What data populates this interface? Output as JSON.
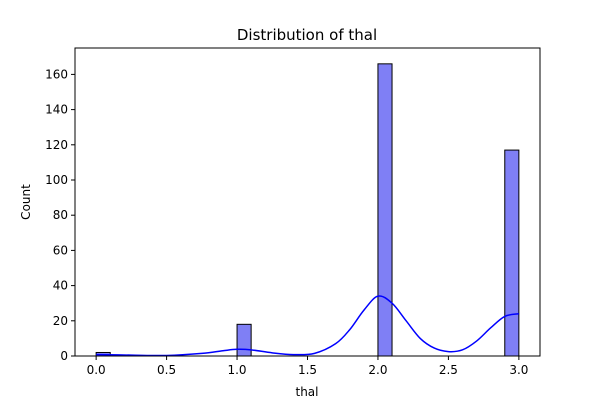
{
  "chart_data": {
    "type": "bar",
    "title": "Distribution of thal",
    "xlabel": "thal",
    "ylabel": "Count",
    "xlim": [
      -0.15,
      3.15
    ],
    "ylim": [
      0,
      175
    ],
    "xticks": [
      0.0,
      0.5,
      1.0,
      1.5,
      2.0,
      2.5,
      3.0
    ],
    "xtick_labels": [
      "0.0",
      "0.5",
      "1.0",
      "1.5",
      "2.0",
      "2.5",
      "3.0"
    ],
    "yticks": [
      0,
      20,
      40,
      60,
      80,
      100,
      120,
      140,
      160
    ],
    "ytick_labels": [
      "0",
      "20",
      "40",
      "60",
      "80",
      "100",
      "120",
      "140",
      "160"
    ],
    "grid": false,
    "bin_width": 0.1,
    "bars": [
      {
        "x_start": 0.0,
        "x_end": 0.1,
        "count": 2
      },
      {
        "x_start": 1.0,
        "x_end": 1.1,
        "count": 18
      },
      {
        "x_start": 2.0,
        "x_end": 2.1,
        "count": 166
      },
      {
        "x_start": 2.9,
        "x_end": 3.0,
        "count": 117
      }
    ],
    "kde": {
      "x": [
        0.0,
        0.25,
        0.5,
        0.75,
        0.9,
        1.0,
        1.1,
        1.25,
        1.4,
        1.55,
        1.7,
        1.8,
        1.9,
        2.0,
        2.1,
        2.2,
        2.3,
        2.4,
        2.5,
        2.6,
        2.7,
        2.8,
        2.9,
        3.0
      ],
      "y": [
        0.8,
        0.5,
        0.3,
        1.5,
        3.0,
        3.8,
        3.5,
        1.8,
        0.8,
        1.5,
        7.0,
        15.0,
        26.0,
        34.0,
        30.0,
        20.0,
        10.0,
        4.5,
        2.5,
        3.5,
        8.5,
        16.0,
        22.5,
        24.0
      ]
    },
    "colors": {
      "bar_fill": "#7f7ff5",
      "bar_edge": "#000000",
      "kde_line": "#0000ff"
    }
  }
}
